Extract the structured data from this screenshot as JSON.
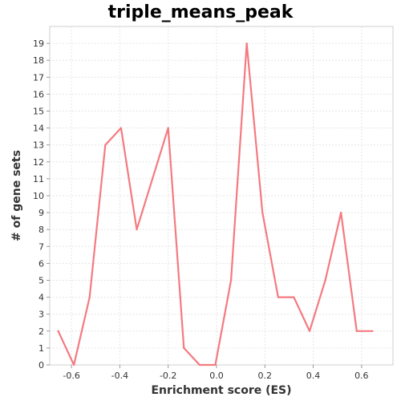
{
  "chart_data": {
    "type": "line",
    "title": "triple_means_peak",
    "xlabel": "Enrichment score (ES)",
    "ylabel": "# of gene sets",
    "xlim": [
      -0.69,
      0.73
    ],
    "ylim": [
      0,
      20
    ],
    "x_ticks": [
      -0.6,
      -0.4,
      -0.2,
      0.0,
      0.2,
      0.4,
      0.6
    ],
    "x_tick_labels": [
      "-0.6",
      "-0.4",
      "-0.2",
      "0.0",
      "0.2",
      "0.4",
      "0.6"
    ],
    "y_ticks": [
      0,
      1,
      2,
      3,
      4,
      5,
      6,
      7,
      8,
      9,
      10,
      11,
      12,
      13,
      14,
      15,
      16,
      17,
      18,
      19
    ],
    "y_tick_labels": [
      "0",
      "1",
      "2",
      "3",
      "4",
      "5",
      "6",
      "7",
      "8",
      "9",
      "10",
      "11",
      "12",
      "13",
      "14",
      "15",
      "16",
      "17",
      "18",
      "19"
    ],
    "grid": true,
    "line_color": "#f47a80",
    "grid_color": "#e6e6e6",
    "series": [
      {
        "x": [
          -0.655,
          -0.59,
          -0.525,
          -0.46,
          -0.395,
          -0.33,
          -0.265,
          -0.2,
          -0.135,
          -0.07,
          -0.005,
          0.06,
          0.125,
          0.19,
          0.255,
          0.32,
          0.385,
          0.45,
          0.515,
          0.58,
          0.645
        ],
        "y": [
          2,
          0,
          4,
          13,
          14,
          8,
          11,
          14,
          1,
          0,
          0,
          5,
          19,
          9,
          4,
          4,
          2,
          5,
          9,
          2,
          2
        ]
      }
    ]
  }
}
